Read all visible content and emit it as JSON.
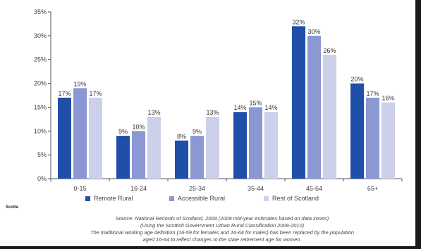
{
  "chart_data": {
    "type": "bar",
    "categories": [
      "0-15",
      "16-24",
      "25-34",
      "35-44",
      "45-64",
      "65+"
    ],
    "series": [
      {
        "name": "Remote Rural",
        "values": [
          17,
          9,
          8,
          14,
          32,
          20
        ],
        "labels": [
          "17%",
          "9%",
          "8%",
          "14%",
          "32%",
          "20%"
        ],
        "color": "#1f4fa8"
      },
      {
        "name": "Accessible Rural",
        "values": [
          19,
          10,
          9,
          15,
          30,
          17
        ],
        "labels": [
          "19%",
          "10%",
          "9%",
          "15%",
          "30%",
          "17%"
        ],
        "color": "#8b98d4"
      },
      {
        "name": "Rest of Scotland",
        "values": [
          17,
          13,
          13,
          14,
          26,
          16
        ],
        "labels": [
          "17%",
          "13%",
          "13%",
          "14%",
          "26%",
          "16%"
        ],
        "color": "#ccd0ea"
      }
    ],
    "yticks": [
      "0%",
      "5%",
      "10%",
      "15%",
      "20%",
      "25%",
      "30%",
      "35%"
    ],
    "ylim": [
      0,
      35
    ],
    "grid": false,
    "legend": "bottom"
  },
  "side_label": "Scotla",
  "source_lines": [
    "Source: National Records of Scotland, 2009 (2009 mid-year estimates based on data zones)",
    "(Using the Scottish Government Urban Rural Classification 2009-2010)",
    "The traditional working age definition (16-59 for females and 16-64 for males) has been replaced by the population",
    "aged 16-64 to reflect changes to the state retirement age for women."
  ]
}
